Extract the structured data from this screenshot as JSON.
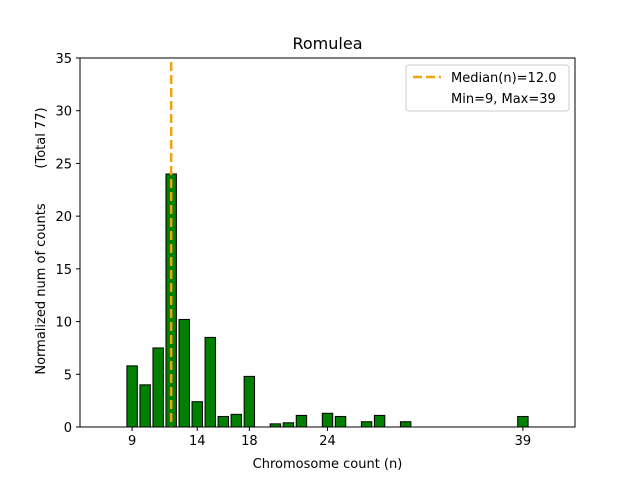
{
  "chart_data": {
    "type": "bar",
    "title": "Romulea",
    "xlabel": "Chromosome count (n)",
    "ylabel": "Normalized num of counts",
    "ylabel_note": "(Total 77)",
    "xlim": [
      5,
      43
    ],
    "ylim": [
      0,
      35
    ],
    "xticks": [
      9,
      14,
      18,
      24,
      39
    ],
    "yticks": [
      0,
      5,
      10,
      15,
      20,
      25,
      30,
      35
    ],
    "x": [
      9,
      10,
      11,
      12,
      13,
      14,
      15,
      16,
      17,
      18,
      20,
      21,
      22,
      24,
      25,
      27,
      28,
      30,
      39
    ],
    "values": [
      5.8,
      4.0,
      7.5,
      24.0,
      10.2,
      2.4,
      8.5,
      1.0,
      1.2,
      4.8,
      0.3,
      0.4,
      1.1,
      1.3,
      1.0,
      0.5,
      1.1,
      0.5,
      1.0
    ],
    "bar_color": "#008000",
    "median": 12.0,
    "median_color": "#f0a30a",
    "legend": {
      "position": "top-right",
      "entries": [
        "Median(n)=12.0",
        "Min=9, Max=39"
      ]
    }
  }
}
